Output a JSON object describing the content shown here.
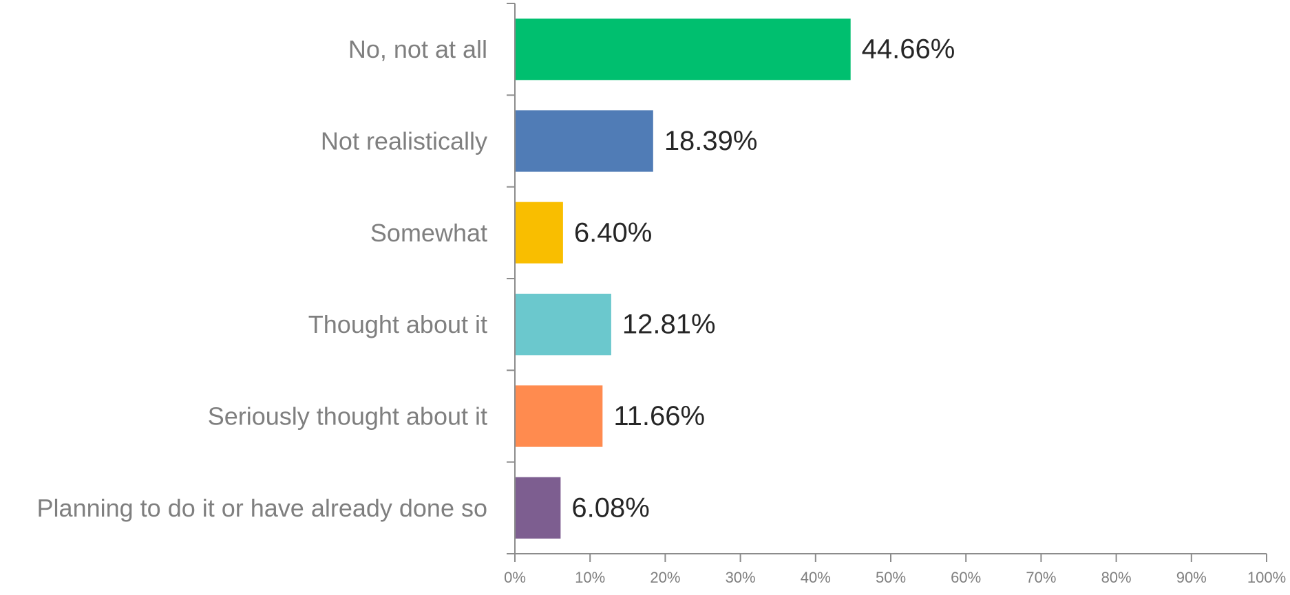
{
  "chart_data": {
    "type": "bar",
    "orientation": "horizontal",
    "title": "",
    "xlabel": "",
    "ylabel": "",
    "categories": [
      "No, not at all",
      "Not realistically",
      "Somewhat",
      "Thought about it",
      "Seriously thought about it",
      "Planning to do it or have already done so"
    ],
    "values": [
      44.66,
      18.39,
      6.4,
      12.81,
      11.66,
      6.08
    ],
    "value_labels": [
      "44.66%",
      "18.39%",
      "6.40%",
      "12.81%",
      "11.66%",
      "6.08%"
    ],
    "colors": [
      "#00bf6f",
      "#507cb6",
      "#f9be00",
      "#6bc8cd",
      "#ff8b4f",
      "#7d5e90"
    ],
    "xlim": [
      0,
      100
    ],
    "x_ticks": [
      0,
      10,
      20,
      30,
      40,
      50,
      60,
      70,
      80,
      90,
      100
    ],
    "x_tick_labels": [
      "0%",
      "10%",
      "20%",
      "30%",
      "40%",
      "50%",
      "60%",
      "70%",
      "80%",
      "90%",
      "100%"
    ],
    "grid": false,
    "legend": "none"
  }
}
